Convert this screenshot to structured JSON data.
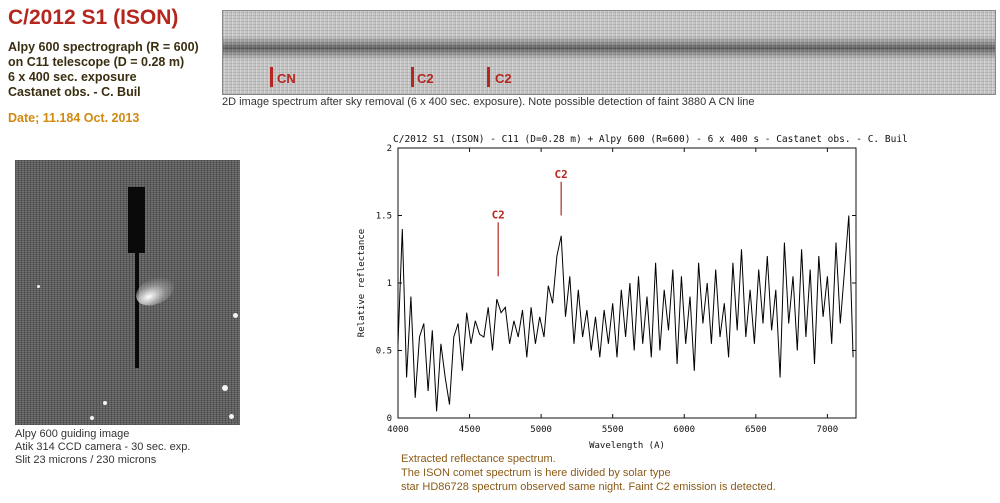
{
  "header": {
    "title": "C/2012 S1 (ISON)",
    "info_lines": [
      "Alpy 600 spectrograph (R = 600)",
      "on C11 telescope (D = 0.28 m)",
      "6 x 400 sec. exposure",
      "Castanet obs. - C. Buil"
    ],
    "date": "Date; 11.184 Oct. 2013"
  },
  "spectrum_2d": {
    "markers": [
      "CN",
      "C2",
      "C2"
    ],
    "caption": "2D image spectrum after sky removal (6 x 400 sec. exposure). Note possible detection of faint 3880 A CN line"
  },
  "guide_image": {
    "caption_lines": [
      "Alpy 600 guiding image",
      "Atik 314 CCD camera - 30 sec. exp.",
      "Slit 23 microns / 230 microns"
    ]
  },
  "chart_data": {
    "type": "line",
    "title": "C/2012 S1 (ISON) - C11 (D=0.28 m) + Alpy 600 (R=600) - 6 x 400 s - Castanet obs. - C. Buil",
    "xlabel": "Wavelength (A)",
    "ylabel": "Relative reflectance",
    "xlim": [
      4000,
      7200
    ],
    "ylim": [
      0,
      2
    ],
    "xticks": [
      4000,
      4500,
      5000,
      5500,
      6000,
      6500,
      7000
    ],
    "yticks": [
      "0",
      "0.5",
      "1",
      "1.5",
      "2"
    ],
    "grid": false,
    "annotations": [
      {
        "label": "C2",
        "x": 4700,
        "y_top": 1.45,
        "y_bottom": 1.05
      },
      {
        "label": "C2",
        "x": 5140,
        "y_top": 1.75,
        "y_bottom": 1.5
      }
    ],
    "series": [
      {
        "x": [
          4000,
          4030,
          4060,
          4090,
          4120,
          4150,
          4180,
          4210,
          4240,
          4270,
          4300,
          4330,
          4360,
          4390,
          4420,
          4450,
          4480,
          4510,
          4540,
          4570,
          4600,
          4630,
          4660,
          4690,
          4720,
          4750,
          4780,
          4810,
          4840,
          4870,
          4900,
          4930,
          4960,
          4990,
          5020,
          5050,
          5080,
          5110,
          5140,
          5170,
          5200,
          5230,
          5260,
          5290,
          5320,
          5350,
          5380,
          5410,
          5440,
          5470,
          5500,
          5530,
          5560,
          5590,
          5620,
          5650,
          5680,
          5710,
          5740,
          5770,
          5800,
          5830,
          5860,
          5890,
          5920,
          5950,
          5980,
          6010,
          6040,
          6070,
          6100,
          6130,
          6160,
          6190,
          6220,
          6250,
          6280,
          6310,
          6340,
          6370,
          6400,
          6430,
          6460,
          6490,
          6520,
          6550,
          6580,
          6610,
          6640,
          6670,
          6700,
          6730,
          6760,
          6790,
          6820,
          6850,
          6880,
          6910,
          6940,
          6970,
          7000,
          7030,
          7060,
          7090,
          7120,
          7150,
          7180
        ],
        "y": [
          0.55,
          1.4,
          0.3,
          0.9,
          0.15,
          0.6,
          0.7,
          0.2,
          0.65,
          0.05,
          0.55,
          0.3,
          0.1,
          0.6,
          0.7,
          0.35,
          0.78,
          0.55,
          0.72,
          0.62,
          0.6,
          0.82,
          0.5,
          0.88,
          0.78,
          0.82,
          0.55,
          0.72,
          0.6,
          0.8,
          0.45,
          0.82,
          0.55,
          0.75,
          0.6,
          0.98,
          0.85,
          1.2,
          1.35,
          0.75,
          1.05,
          0.55,
          0.95,
          0.6,
          0.8,
          0.5,
          0.75,
          0.45,
          0.8,
          0.55,
          0.85,
          0.45,
          0.95,
          0.6,
          1.0,
          0.5,
          1.05,
          0.55,
          0.9,
          0.45,
          1.15,
          0.5,
          0.95,
          0.65,
          1.1,
          0.4,
          1.05,
          0.55,
          0.9,
          0.35,
          1.15,
          0.7,
          1.0,
          0.55,
          1.1,
          0.6,
          0.85,
          0.45,
          1.15,
          0.65,
          1.25,
          0.6,
          0.95,
          0.55,
          1.1,
          0.7,
          1.2,
          0.65,
          0.95,
          0.3,
          1.3,
          0.7,
          1.05,
          0.5,
          1.25,
          0.6,
          1.1,
          0.4,
          1.2,
          0.75,
          1.05,
          0.55,
          1.3,
          0.7,
          1.1,
          1.5,
          0.45
        ]
      }
    ]
  },
  "chart_caption": [
    "Extracted reflectance spectrum.",
    "The ISON comet spectrum is here divided by solar type",
    "star HD86728 spectrum observed same night. Faint C2 emission is detected."
  ]
}
